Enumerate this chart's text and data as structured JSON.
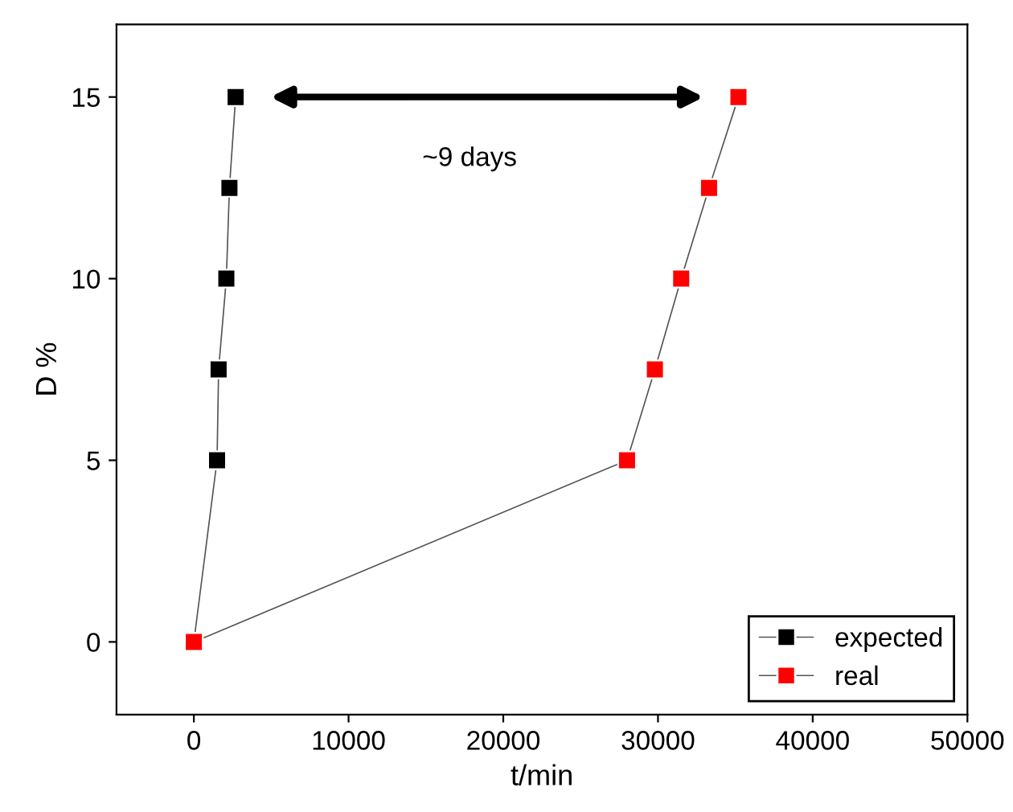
{
  "chart_data": {
    "type": "line",
    "xlabel": "t/min",
    "ylabel": "D %",
    "xlim": [
      -5000,
      50000
    ],
    "ylim": [
      -2,
      17
    ],
    "xticks": [
      0,
      10000,
      20000,
      30000,
      40000,
      50000
    ],
    "yticks": [
      0,
      5,
      10,
      15
    ],
    "marker": "square",
    "line_style": "solid",
    "legend": "bottom right",
    "grid": false,
    "series": [
      {
        "name": "expected",
        "color": "#000000",
        "x": [
          0,
          1500,
          1600,
          2100,
          2300,
          2700
        ],
        "values": [
          0,
          5,
          7.5,
          10,
          12.5,
          15
        ]
      },
      {
        "name": "real",
        "color": "#ff0000",
        "x": [
          0,
          28000,
          29800,
          31500,
          33300,
          35200
        ],
        "values": [
          0,
          5,
          7.5,
          10,
          12.5,
          15
        ]
      }
    ],
    "annotations": [
      "~9 days"
    ]
  }
}
